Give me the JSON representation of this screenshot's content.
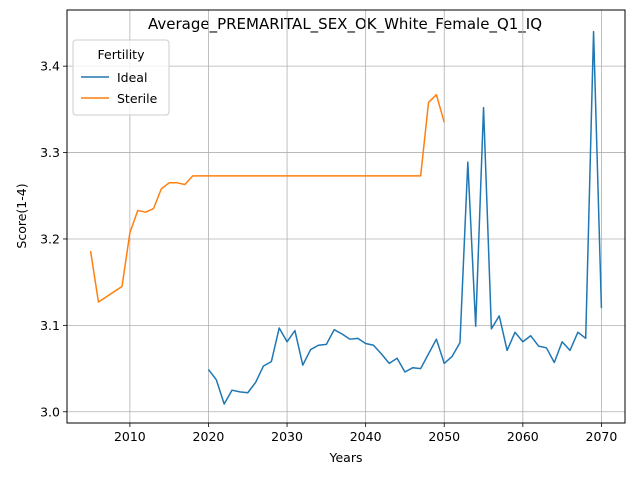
{
  "chart_data": {
    "type": "line",
    "title": "Average_PREMARITAL_SEX_OK_White_Female_Q1_IQ",
    "xlabel": "Years",
    "ylabel": "Score(1-4)",
    "xlim": [
      2002,
      2073
    ],
    "ylim": [
      2.987,
      3.465
    ],
    "x_ticks": [
      2010,
      2020,
      2030,
      2040,
      2050,
      2060,
      2070
    ],
    "y_ticks": [
      3.0,
      3.1,
      3.2,
      3.3,
      3.4
    ],
    "y_tick_labels": [
      "3.0",
      "3.1",
      "3.2",
      "3.3",
      "3.4"
    ],
    "grid": true,
    "legend": {
      "title": "Fertility",
      "placement": "top-left"
    },
    "series": [
      {
        "name": "Ideal",
        "color": "#1f77b4",
        "x": [
          2020,
          2021,
          2022,
          2023,
          2024,
          2025,
          2026,
          2027,
          2028,
          2029,
          2030,
          2031,
          2032,
          2033,
          2034,
          2035,
          2036,
          2037,
          2038,
          2039,
          2040,
          2041,
          2042,
          2043,
          2044,
          2045,
          2046,
          2047,
          2048,
          2049,
          2050,
          2051,
          2052,
          2053,
          2054,
          2055,
          2056,
          2057,
          2058,
          2059,
          2060,
          2061,
          2062,
          2063,
          2064,
          2065,
          2066,
          2067,
          2068,
          2069,
          2070
        ],
        "y": [
          3.049,
          3.037,
          3.009,
          3.025,
          3.023,
          3.022,
          3.034,
          3.053,
          3.058,
          3.097,
          3.081,
          3.094,
          3.054,
          3.072,
          3.077,
          3.078,
          3.095,
          3.09,
          3.084,
          3.085,
          3.079,
          3.077,
          3.067,
          3.056,
          3.062,
          3.046,
          3.051,
          3.05,
          3.067,
          3.084,
          3.056,
          3.064,
          3.08,
          3.289,
          3.099,
          3.352,
          3.096,
          3.111,
          3.071,
          3.092,
          3.081,
          3.088,
          3.076,
          3.074,
          3.057,
          3.081,
          3.071,
          3.092,
          3.085,
          3.44,
          3.12
        ]
      },
      {
        "name": "Sterile",
        "color": "#ff7f0e",
        "x": [
          2005,
          2006,
          2007,
          2008,
          2009,
          2010,
          2011,
          2012,
          2013,
          2014,
          2015,
          2016,
          2017,
          2018,
          2019,
          2020,
          2021,
          2022,
          2023,
          2024,
          2025,
          2026,
          2027,
          2028,
          2029,
          2030,
          2031,
          2032,
          2033,
          2034,
          2035,
          2036,
          2037,
          2038,
          2039,
          2040,
          2041,
          2042,
          2043,
          2044,
          2045,
          2046,
          2047,
          2048,
          2049,
          2050
        ],
        "y": [
          3.186,
          3.127,
          3.133,
          3.139,
          3.145,
          3.207,
          3.233,
          3.231,
          3.235,
          3.258,
          3.265,
          3.265,
          3.263,
          3.273,
          3.273,
          3.273,
          3.273,
          3.273,
          3.273,
          3.273,
          3.273,
          3.273,
          3.273,
          3.273,
          3.273,
          3.273,
          3.273,
          3.273,
          3.273,
          3.273,
          3.273,
          3.273,
          3.273,
          3.273,
          3.273,
          3.273,
          3.273,
          3.273,
          3.273,
          3.273,
          3.273,
          3.273,
          3.273,
          3.358,
          3.367,
          3.335
        ]
      }
    ]
  }
}
